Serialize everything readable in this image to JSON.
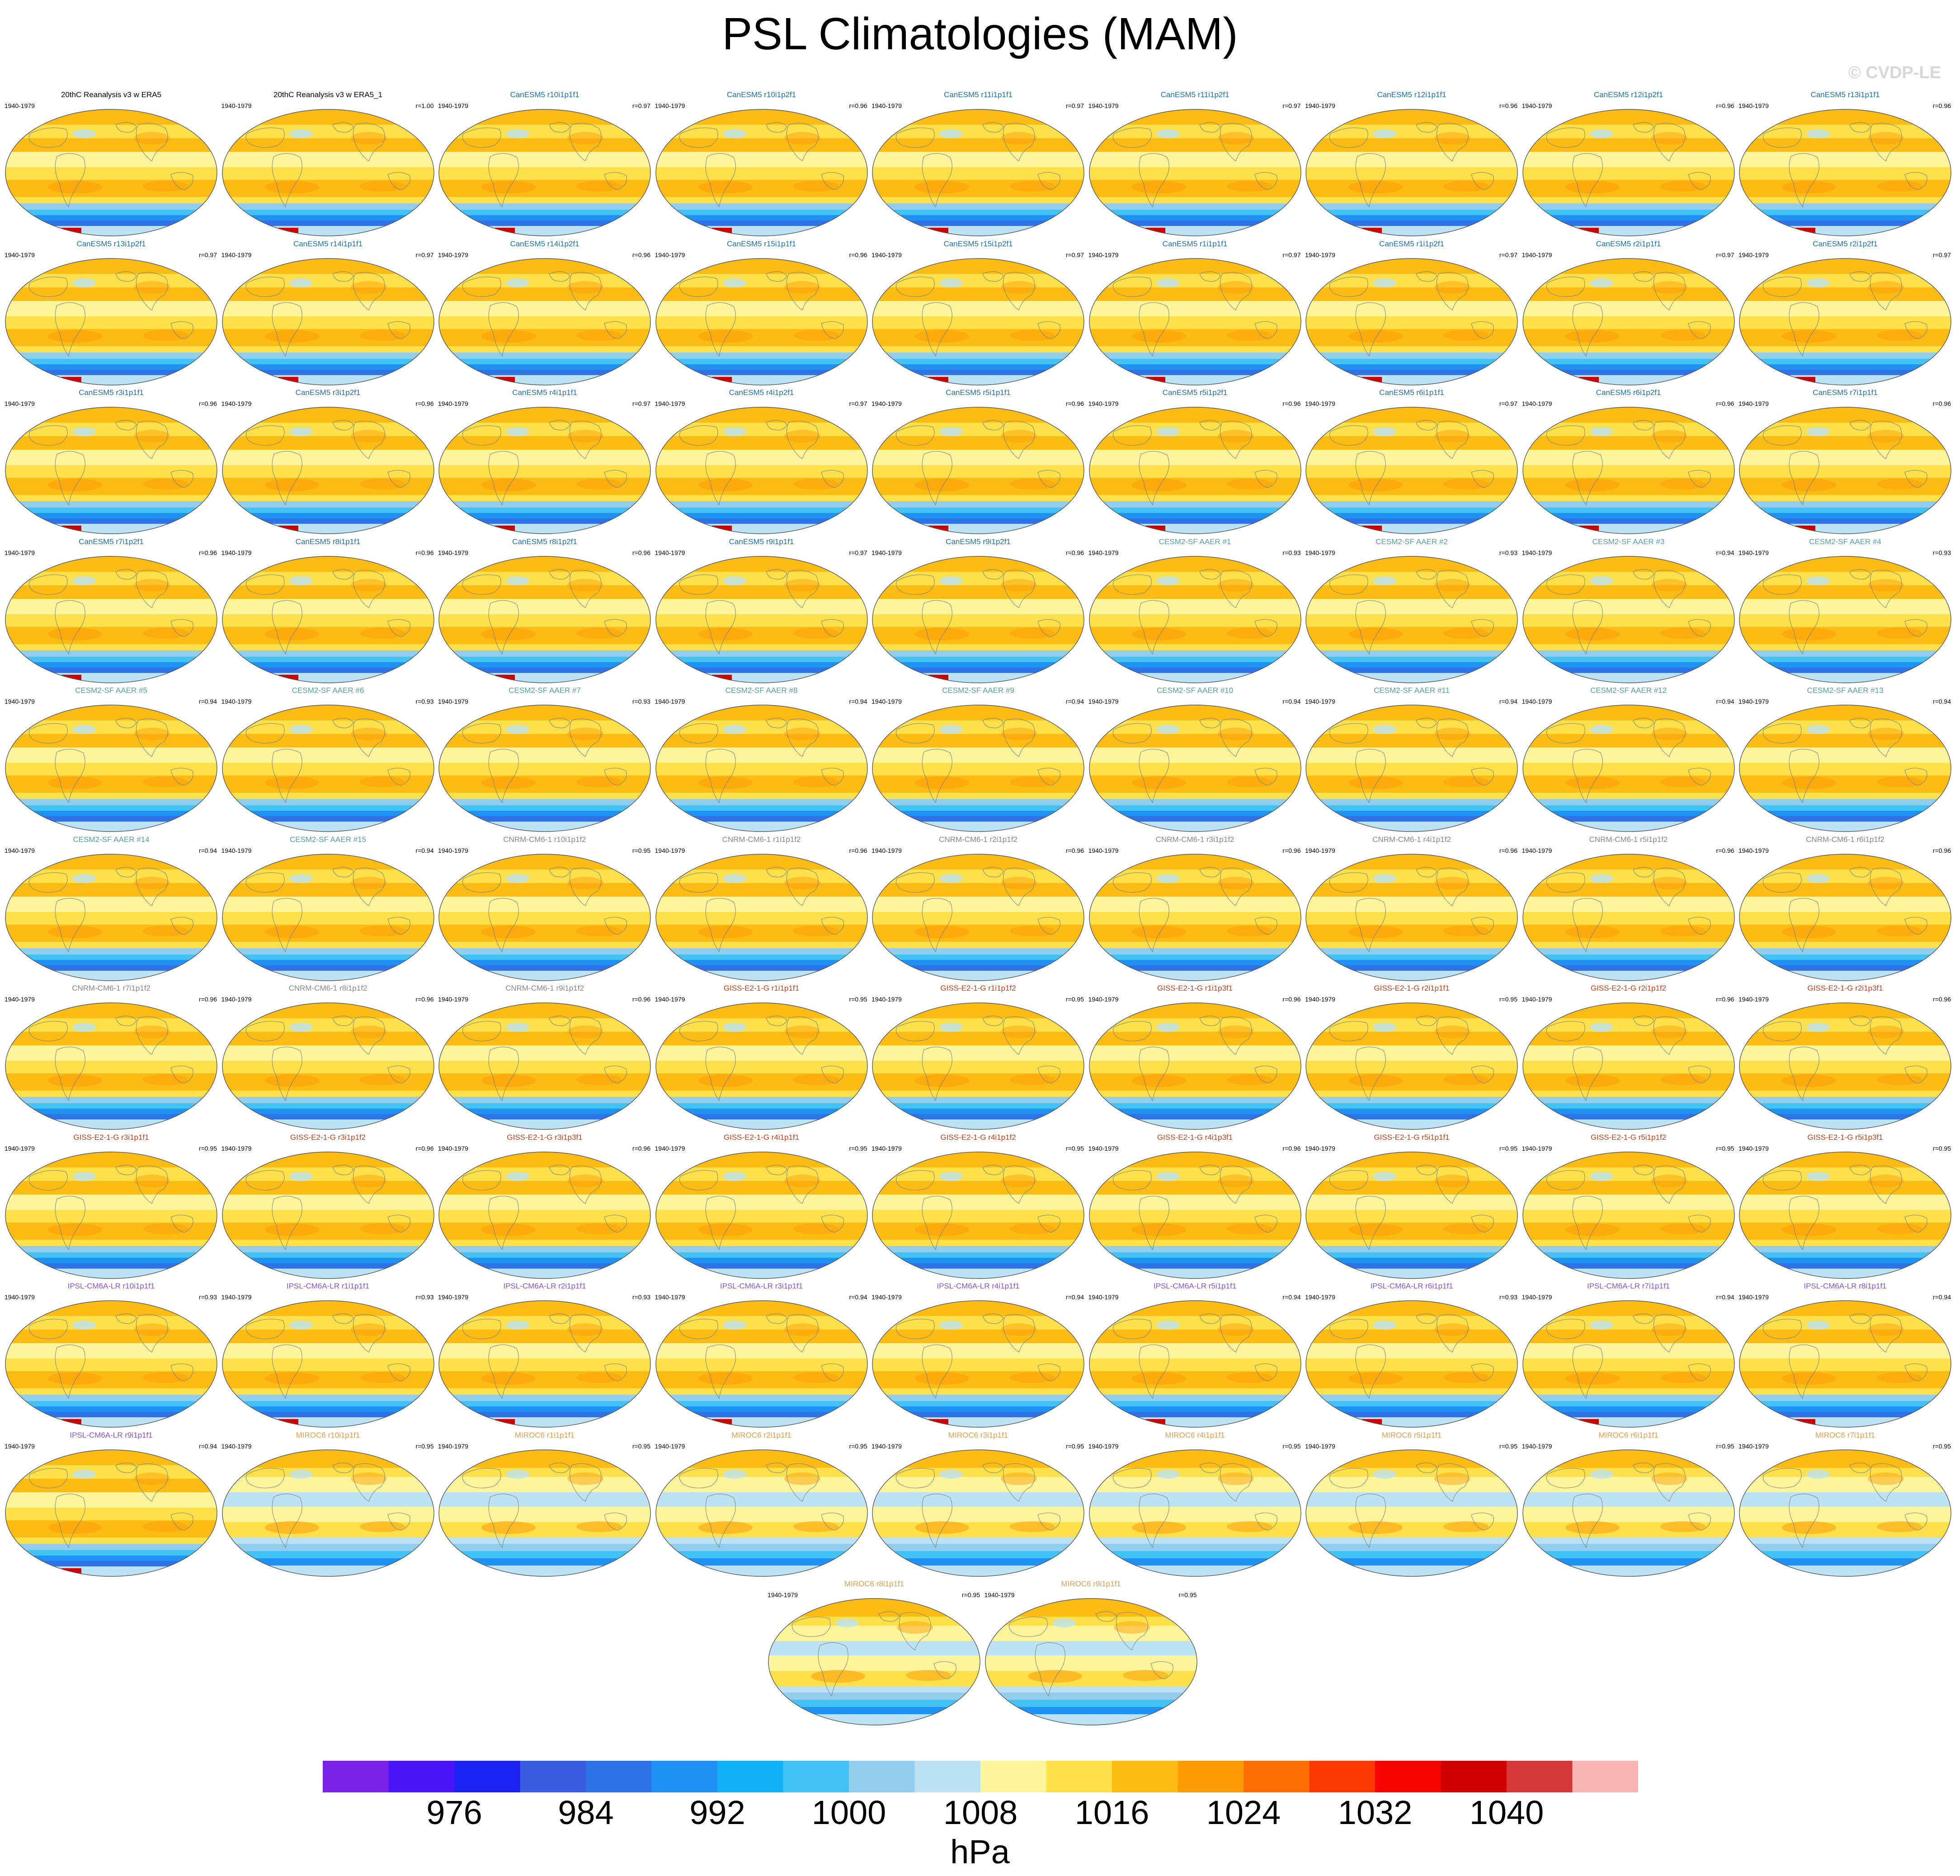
{
  "title": "PSL Climatologies (MAM)",
  "watermark": "© CVDP-LE",
  "units": "hPa",
  "colorbar": {
    "labels": [
      "976",
      "984",
      "992",
      "1000",
      "1008",
      "1016",
      "1024",
      "1032",
      "1040"
    ],
    "colors": [
      "#7b22e8",
      "#4b16f5",
      "#1c22ef",
      "#3a5ce0",
      "#2f74e6",
      "#1f92f4",
      "#12b0f6",
      "#43c3f5",
      "#92cdee",
      "#bde2f3",
      "#fdf59b",
      "#fde04a",
      "#fcbc14",
      "#fc9b05",
      "#fc6d04",
      "#fb3900",
      "#f50400",
      "#d10000",
      "#d43939",
      "#f9b4b4"
    ]
  },
  "panel_colors": {
    "obs": "#000000",
    "canesm": "#1f6fa8",
    "cesm": "#5a9ea0",
    "cnrm": "#888888",
    "giss": "#c0401c",
    "ipsl": "#8a55c8",
    "miroc": "#e0a050"
  },
  "chart_data": {
    "type": "heatmap",
    "period": "1940-1979",
    "panels": [
      {
        "title": "20thC Reanalysis v3 w ERA5",
        "left": "1940-1979",
        "right": "",
        "group": "obs"
      },
      {
        "title": "20thC Reanalysis v3 w ERA5_1",
        "left": "1940-1979",
        "right": "r=1.00",
        "group": "obs"
      },
      {
        "title": "CanESM5 r10i1p1f1",
        "left": "1940-1979",
        "right": "r=0.97",
        "group": "canesm"
      },
      {
        "title": "CanESM5 r10i1p2f1",
        "left": "1940-1979",
        "right": "r=0.96",
        "group": "canesm"
      },
      {
        "title": "CanESM5 r11i1p1f1",
        "left": "1940-1979",
        "right": "r=0.97",
        "group": "canesm"
      },
      {
        "title": "CanESM5 r11i1p2f1",
        "left": "1940-1979",
        "right": "r=0.97",
        "group": "canesm"
      },
      {
        "title": "CanESM5 r12i1p1f1",
        "left": "1940-1979",
        "right": "r=0.96",
        "group": "canesm"
      },
      {
        "title": "CanESM5 r12i1p2f1",
        "left": "1940-1979",
        "right": "r=0.96",
        "group": "canesm"
      },
      {
        "title": "CanESM5 r13i1p1f1",
        "left": "1940-1979",
        "right": "r=0.96",
        "group": "canesm"
      },
      {
        "title": "CanESM5 r13i1p2f1",
        "left": "1940-1979",
        "right": "r=0.97",
        "group": "canesm"
      },
      {
        "title": "CanESM5 r14i1p1f1",
        "left": "1940-1979",
        "right": "r=0.97",
        "group": "canesm"
      },
      {
        "title": "CanESM5 r14i1p2f1",
        "left": "1940-1979",
        "right": "r=0.96",
        "group": "canesm"
      },
      {
        "title": "CanESM5 r15i1p1f1",
        "left": "1940-1979",
        "right": "r=0.96",
        "group": "canesm"
      },
      {
        "title": "CanESM5 r15i1p2f1",
        "left": "1940-1979",
        "right": "r=0.97",
        "group": "canesm"
      },
      {
        "title": "CanESM5 r1i1p1f1",
        "left": "1940-1979",
        "right": "r=0.97",
        "group": "canesm"
      },
      {
        "title": "CanESM5 r1i1p2f1",
        "left": "1940-1979",
        "right": "r=0.97",
        "group": "canesm"
      },
      {
        "title": "CanESM5 r2i1p1f1",
        "left": "1940-1979",
        "right": "r=0.97",
        "group": "canesm"
      },
      {
        "title": "CanESM5 r2i1p2f1",
        "left": "1940-1979",
        "right": "r=0.97",
        "group": "canesm"
      },
      {
        "title": "CanESM5 r3i1p1f1",
        "left": "1940-1979",
        "right": "r=0.96",
        "group": "canesm"
      },
      {
        "title": "CanESM5 r3i1p2f1",
        "left": "1940-1979",
        "right": "r=0.96",
        "group": "canesm"
      },
      {
        "title": "CanESM5 r4i1p1f1",
        "left": "1940-1979",
        "right": "r=0.97",
        "group": "canesm"
      },
      {
        "title": "CanESM5 r4i1p2f1",
        "left": "1940-1979",
        "right": "r=0.97",
        "group": "canesm"
      },
      {
        "title": "CanESM5 r5i1p1f1",
        "left": "1940-1979",
        "right": "r=0.96",
        "group": "canesm"
      },
      {
        "title": "CanESM5 r5i1p2f1",
        "left": "1940-1979",
        "right": "r=0.96",
        "group": "canesm"
      },
      {
        "title": "CanESM5 r6i1p1f1",
        "left": "1940-1979",
        "right": "r=0.97",
        "group": "canesm"
      },
      {
        "title": "CanESM5 r6i1p2f1",
        "left": "1940-1979",
        "right": "r=0.96",
        "group": "canesm"
      },
      {
        "title": "CanESM5 r7i1p1f1",
        "left": "1940-1979",
        "right": "r=0.96",
        "group": "canesm"
      },
      {
        "title": "CanESM5 r7i1p2f1",
        "left": "1940-1979",
        "right": "r=0.96",
        "group": "canesm"
      },
      {
        "title": "CanESM5 r8i1p1f1",
        "left": "1940-1979",
        "right": "r=0.96",
        "group": "canesm"
      },
      {
        "title": "CanESM5 r8i1p2f1",
        "left": "1940-1979",
        "right": "r=0.96",
        "group": "canesm"
      },
      {
        "title": "CanESM5 r9i1p1f1",
        "left": "1940-1979",
        "right": "r=0.97",
        "group": "canesm"
      },
      {
        "title": "CanESM5 r9i1p2f1",
        "left": "1940-1979",
        "right": "r=0.96",
        "group": "canesm"
      },
      {
        "title": "CESM2-SF AAER #1",
        "left": "1940-1979",
        "right": "r=0.93",
        "group": "cesm"
      },
      {
        "title": "CESM2-SF AAER #2",
        "left": "1940-1979",
        "right": "r=0.93",
        "group": "cesm"
      },
      {
        "title": "CESM2-SF AAER #3",
        "left": "1940-1979",
        "right": "r=0.94",
        "group": "cesm"
      },
      {
        "title": "CESM2-SF AAER #4",
        "left": "1940-1979",
        "right": "r=0.93",
        "group": "cesm"
      },
      {
        "title": "CESM2-SF AAER #5",
        "left": "1940-1979",
        "right": "r=0.94",
        "group": "cesm"
      },
      {
        "title": "CESM2-SF AAER #6",
        "left": "1940-1979",
        "right": "r=0.93",
        "group": "cesm"
      },
      {
        "title": "CESM2-SF AAER #7",
        "left": "1940-1979",
        "right": "r=0.93",
        "group": "cesm"
      },
      {
        "title": "CESM2-SF AAER #8",
        "left": "1940-1979",
        "right": "r=0.94",
        "group": "cesm"
      },
      {
        "title": "CESM2-SF AAER #9",
        "left": "1940-1979",
        "right": "r=0.94",
        "group": "cesm"
      },
      {
        "title": "CESM2-SF AAER #10",
        "left": "1940-1979",
        "right": "r=0.94",
        "group": "cesm"
      },
      {
        "title": "CESM2-SF AAER #11",
        "left": "1940-1979",
        "right": "r=0.94",
        "group": "cesm"
      },
      {
        "title": "CESM2-SF AAER #12",
        "left": "1940-1979",
        "right": "r=0.94",
        "group": "cesm"
      },
      {
        "title": "CESM2-SF AAER #13",
        "left": "1940-1979",
        "right": "r=0.94",
        "group": "cesm"
      },
      {
        "title": "CESM2-SF AAER #14",
        "left": "1940-1979",
        "right": "r=0.94",
        "group": "cesm"
      },
      {
        "title": "CESM2-SF AAER #15",
        "left": "1940-1979",
        "right": "r=0.94",
        "group": "cesm"
      },
      {
        "title": "CNRM-CM6-1 r10i1p1f2",
        "left": "1940-1979",
        "right": "r=0.95",
        "group": "cnrm"
      },
      {
        "title": "CNRM-CM6-1 r1i1p1f2",
        "left": "1940-1979",
        "right": "r=0.96",
        "group": "cnrm"
      },
      {
        "title": "CNRM-CM6-1 r2i1p1f2",
        "left": "1940-1979",
        "right": "r=0.96",
        "group": "cnrm"
      },
      {
        "title": "CNRM-CM6-1 r3i1p1f2",
        "left": "1940-1979",
        "right": "r=0.96",
        "group": "cnrm"
      },
      {
        "title": "CNRM-CM6-1 r4i1p1f2",
        "left": "1940-1979",
        "right": "r=0.96",
        "group": "cnrm"
      },
      {
        "title": "CNRM-CM6-1 r5i1p1f2",
        "left": "1940-1979",
        "right": "r=0.96",
        "group": "cnrm"
      },
      {
        "title": "CNRM-CM6-1 r6i1p1f2",
        "left": "1940-1979",
        "right": "r=0.96",
        "group": "cnrm"
      },
      {
        "title": "CNRM-CM6-1 r7i1p1f2",
        "left": "1940-1979",
        "right": "r=0.96",
        "group": "cnrm"
      },
      {
        "title": "CNRM-CM6-1 r8i1p1f2",
        "left": "1940-1979",
        "right": "r=0.96",
        "group": "cnrm"
      },
      {
        "title": "CNRM-CM6-1 r9i1p1f2",
        "left": "1940-1979",
        "right": "r=0.96",
        "group": "cnrm"
      },
      {
        "title": "GISS-E2-1-G r1i1p1f1",
        "left": "1940-1979",
        "right": "r=0.95",
        "group": "giss"
      },
      {
        "title": "GISS-E2-1-G r1i1p1f2",
        "left": "1940-1979",
        "right": "r=0.95",
        "group": "giss"
      },
      {
        "title": "GISS-E2-1-G r1i1p3f1",
        "left": "1940-1979",
        "right": "r=0.96",
        "group": "giss"
      },
      {
        "title": "GISS-E2-1-G r2i1p1f1",
        "left": "1940-1979",
        "right": "r=0.95",
        "group": "giss"
      },
      {
        "title": "GISS-E2-1-G r2i1p1f2",
        "left": "1940-1979",
        "right": "r=0.96",
        "group": "giss"
      },
      {
        "title": "GISS-E2-1-G r2i1p3f1",
        "left": "1940-1979",
        "right": "r=0.96",
        "group": "giss"
      },
      {
        "title": "GISS-E2-1-G r3i1p1f1",
        "left": "1940-1979",
        "right": "r=0.95",
        "group": "giss"
      },
      {
        "title": "GISS-E2-1-G r3i1p1f2",
        "left": "1940-1979",
        "right": "r=0.96",
        "group": "giss"
      },
      {
        "title": "GISS-E2-1-G r3i1p3f1",
        "left": "1940-1979",
        "right": "r=0.96",
        "group": "giss"
      },
      {
        "title": "GISS-E2-1-G r4i1p1f1",
        "left": "1940-1979",
        "right": "r=0.95",
        "group": "giss"
      },
      {
        "title": "GISS-E2-1-G r4i1p1f2",
        "left": "1940-1979",
        "right": "r=0.95",
        "group": "giss"
      },
      {
        "title": "GISS-E2-1-G r4i1p3f1",
        "left": "1940-1979",
        "right": "r=0.96",
        "group": "giss"
      },
      {
        "title": "GISS-E2-1-G r5i1p1f1",
        "left": "1940-1979",
        "right": "r=0.95",
        "group": "giss"
      },
      {
        "title": "GISS-E2-1-G r5i1p1f2",
        "left": "1940-1979",
        "right": "r=0.95",
        "group": "giss"
      },
      {
        "title": "GISS-E2-1-G r5i1p3f1",
        "left": "1940-1979",
        "right": "r=0.95",
        "group": "giss"
      },
      {
        "title": "IPSL-CM6A-LR r10i1p1f1",
        "left": "1940-1979",
        "right": "r=0.93",
        "group": "ipsl"
      },
      {
        "title": "IPSL-CM6A-LR r1i1p1f1",
        "left": "1940-1979",
        "right": "r=0.93",
        "group": "ipsl"
      },
      {
        "title": "IPSL-CM6A-LR r2i1p1f1",
        "left": "1940-1979",
        "right": "r=0.93",
        "group": "ipsl"
      },
      {
        "title": "IPSL-CM6A-LR r3i1p1f1",
        "left": "1940-1979",
        "right": "r=0.94",
        "group": "ipsl"
      },
      {
        "title": "IPSL-CM6A-LR r4i1p1f1",
        "left": "1940-1979",
        "right": "r=0.94",
        "group": "ipsl"
      },
      {
        "title": "IPSL-CM6A-LR r5i1p1f1",
        "left": "1940-1979",
        "right": "r=0.94",
        "group": "ipsl"
      },
      {
        "title": "IPSL-CM6A-LR r6i1p1f1",
        "left": "1940-1979",
        "right": "r=0.93",
        "group": "ipsl"
      },
      {
        "title": "IPSL-CM6A-LR r7i1p1f1",
        "left": "1940-1979",
        "right": "r=0.94",
        "group": "ipsl"
      },
      {
        "title": "IPSL-CM6A-LR r8i1p1f1",
        "left": "1940-1979",
        "right": "r=0.94",
        "group": "ipsl"
      },
      {
        "title": "IPSL-CM6A-LR r9i1p1f1",
        "left": "1940-1979",
        "right": "r=0.94",
        "group": "ipsl"
      },
      {
        "title": "MIROC6 r10i1p1f1",
        "left": "1940-1979",
        "right": "r=0.95",
        "group": "miroc"
      },
      {
        "title": "MIROC6 r1i1p1f1",
        "left": "1940-1979",
        "right": "r=0.95",
        "group": "miroc"
      },
      {
        "title": "MIROC6 r2i1p1f1",
        "left": "1940-1979",
        "right": "r=0.95",
        "group": "miroc"
      },
      {
        "title": "MIROC6 r3i1p1f1",
        "left": "1940-1979",
        "right": "r=0.95",
        "group": "miroc"
      },
      {
        "title": "MIROC6 r4i1p1f1",
        "left": "1940-1979",
        "right": "r=0.95",
        "group": "miroc"
      },
      {
        "title": "MIROC6 r5i1p1f1",
        "left": "1940-1979",
        "right": "r=0.95",
        "group": "miroc"
      },
      {
        "title": "MIROC6 r6i1p1f1",
        "left": "1940-1979",
        "right": "r=0.95",
        "group": "miroc"
      },
      {
        "title": "MIROC6 r7i1p1f1",
        "left": "1940-1979",
        "right": "r=0.95",
        "group": "miroc"
      },
      {
        "title": "MIROC6 r8i1p1f1",
        "left": "1940-1979",
        "right": "r=0.95",
        "group": "miroc"
      },
      {
        "title": "MIROC6 r9i1p1f1",
        "left": "1940-1979",
        "right": "r=0.95",
        "group": "miroc"
      }
    ]
  }
}
